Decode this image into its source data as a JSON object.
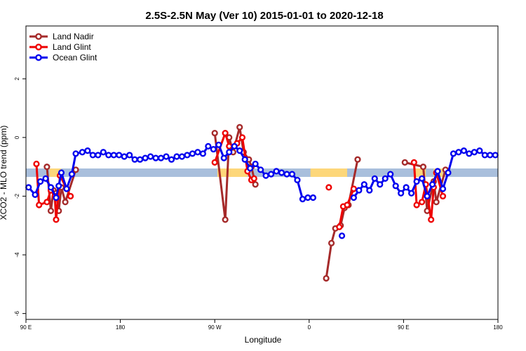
{
  "chart_data": {
    "type": "line",
    "title": "2.5S-2.5N May (Ver 10)   2015-01-01 to 2020-12-18",
    "xlabel": "Longitude",
    "ylabel": "XCO2 - MLO trend (ppm)",
    "xlim": [
      0,
      360
    ],
    "ylim": [
      -6.2,
      3.8
    ],
    "x_ticks": [
      {
        "x": 0,
        "label": "90 E"
      },
      {
        "x": 72,
        "label": "180"
      },
      {
        "x": 144,
        "label": "90 W"
      },
      {
        "x": 216,
        "label": "0"
      },
      {
        "x": 288,
        "label": "90 E"
      },
      {
        "x": 360,
        "label": "180"
      }
    ],
    "y_ticks": [
      -6,
      -4,
      -2,
      0,
      2
    ],
    "legend_position": "top-left",
    "colors": {
      "band_gray": "#a9bfdc",
      "band_yellow": "#fdd77a",
      "land_nadir": "#a52a2a",
      "land_glint": "#ee0000",
      "ocean_glint": "#0000ee"
    },
    "reference_band": {
      "y": -1.2,
      "range": [
        0,
        360
      ]
    },
    "highlight_segments": [
      [
        18,
        27
      ],
      [
        146,
        169
      ],
      [
        217,
        245
      ],
      [
        296,
        305
      ],
      [
        311,
        318
      ]
    ],
    "series": [
      {
        "name": "Land Nadir",
        "color": "#a52a2a",
        "segments": [
          [
            [
              16,
              -1.0
            ],
            [
              19,
              -2.5
            ],
            [
              21,
              -1.8
            ],
            [
              23,
              -1.9
            ],
            [
              25,
              -2.5
            ],
            [
              27,
              -1.7
            ],
            [
              30,
              -2.2
            ],
            [
              38,
              -1.1
            ]
          ],
          [
            [
              144,
              0.15
            ],
            [
              152,
              -2.8
            ],
            [
              155,
              0.0
            ],
            [
              158,
              -0.5
            ],
            [
              163,
              0.35
            ],
            [
              166,
              -0.5
            ],
            [
              170,
              -0.75
            ],
            [
              172,
              -1.0
            ],
            [
              175,
              -1.6
            ]
          ],
          [
            [
              229,
              -4.8
            ],
            [
              233,
              -3.6
            ],
            [
              236,
              -3.1
            ],
            [
              240,
              -3.0
            ],
            [
              243,
              -2.4
            ],
            [
              246,
              -2.3
            ],
            [
              253,
              -0.75
            ]
          ],
          [
            [
              289,
              -0.85
            ],
            [
              303,
              -1.0
            ],
            [
              306,
              -2.5
            ],
            [
              311,
              -1.5
            ],
            [
              313,
              -2.2
            ],
            [
              320,
              -1.1
            ]
          ]
        ]
      },
      {
        "name": "Land Glint",
        "color": "#ee0000",
        "segments": [
          [
            [
              8,
              -0.9
            ],
            [
              10,
              -2.3
            ],
            [
              16,
              -2.2
            ],
            [
              19,
              -1.8
            ],
            [
              22,
              -2.0
            ],
            [
              23,
              -2.8
            ],
            [
              26,
              -1.3
            ],
            [
              34,
              -2.0
            ]
          ],
          [
            [
              144,
              -0.85
            ],
            [
              152,
              0.15
            ],
            [
              155,
              -0.3
            ],
            [
              161,
              -0.2
            ],
            [
              165,
              0.0
            ],
            [
              169,
              -1.15
            ],
            [
              172,
              -1.45
            ],
            [
              174,
              -1.4
            ]
          ],
          [
            [
              231,
              -1.7
            ]
          ],
          [
            [
              239,
              -3.05
            ],
            [
              242,
              -2.35
            ],
            [
              245,
              -2.3
            ],
            [
              250,
              -1.75
            ]
          ],
          [
            [
              296,
              -0.85
            ],
            [
              298,
              -2.3
            ],
            [
              302,
              -2.2
            ],
            [
              305,
              -1.6
            ],
            [
              309,
              -2.8
            ],
            [
              311,
              -1.7
            ],
            [
              313,
              -1.2
            ],
            [
              318,
              -2.0
            ]
          ]
        ]
      },
      {
        "name": "Ocean Glint",
        "color": "#0000ee",
        "segments": [
          [
            [
              2,
              -1.7
            ],
            [
              7,
              -1.95
            ],
            [
              11,
              -1.5
            ],
            [
              15,
              -1.4
            ],
            [
              19,
              -1.7
            ],
            [
              23,
              -2.05
            ],
            [
              25,
              -1.65
            ],
            [
              27,
              -1.2
            ],
            [
              31,
              -1.75
            ],
            [
              35,
              -1.25
            ],
            [
              38,
              -0.55
            ],
            [
              43,
              -0.5
            ],
            [
              47,
              -0.45
            ],
            [
              51,
              -0.6
            ],
            [
              55,
              -0.6
            ],
            [
              59,
              -0.5
            ],
            [
              63,
              -0.6
            ],
            [
              67,
              -0.6
            ],
            [
              71,
              -0.6
            ],
            [
              75,
              -0.65
            ],
            [
              79,
              -0.6
            ],
            [
              83,
              -0.75
            ],
            [
              87,
              -0.75
            ],
            [
              91,
              -0.7
            ],
            [
              95,
              -0.65
            ],
            [
              99,
              -0.7
            ],
            [
              103,
              -0.7
            ],
            [
              107,
              -0.65
            ],
            [
              111,
              -0.75
            ],
            [
              115,
              -0.65
            ],
            [
              119,
              -0.65
            ],
            [
              123,
              -0.6
            ],
            [
              127,
              -0.55
            ],
            [
              131,
              -0.5
            ],
            [
              135,
              -0.55
            ],
            [
              139,
              -0.3
            ],
            [
              143,
              -0.4
            ],
            [
              147,
              -0.25
            ],
            [
              151,
              -0.7
            ],
            [
              155,
              -0.5
            ],
            [
              159,
              -0.3
            ],
            [
              163,
              -0.45
            ],
            [
              167,
              -0.75
            ],
            [
              171,
              -1.05
            ],
            [
              175,
              -0.9
            ],
            [
              179,
              -1.1
            ],
            [
              183,
              -1.3
            ],
            [
              187,
              -1.25
            ],
            [
              191,
              -1.15
            ],
            [
              195,
              -1.2
            ],
            [
              199,
              -1.25
            ],
            [
              203,
              -1.25
            ],
            [
              207,
              -1.45
            ],
            [
              211,
              -2.1
            ],
            [
              215,
              -2.05
            ],
            [
              219,
              -2.05
            ]
          ],
          [
            [
              241,
              -3.35
            ]
          ],
          [
            [
              250,
              -2.05
            ],
            [
              254,
              -1.8
            ],
            [
              258,
              -1.6
            ],
            [
              262,
              -1.8
            ],
            [
              266,
              -1.4
            ],
            [
              270,
              -1.6
            ],
            [
              274,
              -1.4
            ],
            [
              278,
              -1.25
            ],
            [
              282,
              -1.65
            ],
            [
              286,
              -1.9
            ],
            [
              290,
              -1.7
            ],
            [
              294,
              -1.9
            ],
            [
              298,
              -1.5
            ],
            [
              302,
              -1.4
            ],
            [
              306,
              -2.0
            ],
            [
              310,
              -1.6
            ],
            [
              314,
              -1.15
            ],
            [
              318,
              -1.75
            ],
            [
              322,
              -1.2
            ],
            [
              326,
              -0.55
            ],
            [
              330,
              -0.5
            ],
            [
              334,
              -0.45
            ],
            [
              338,
              -0.55
            ],
            [
              342,
              -0.5
            ],
            [
              346,
              -0.45
            ],
            [
              350,
              -0.6
            ],
            [
              354,
              -0.6
            ],
            [
              358,
              -0.6
            ]
          ]
        ]
      }
    ]
  }
}
